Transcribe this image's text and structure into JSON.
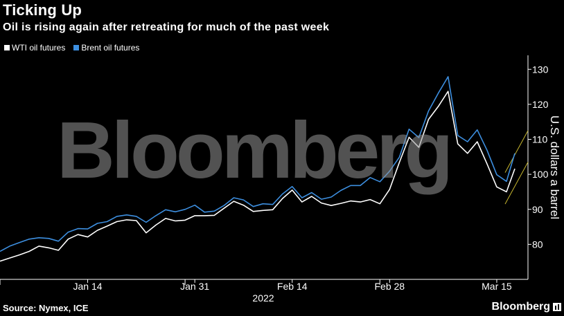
{
  "header": {
    "title": "Ticking Up",
    "subtitle": "Oil is rising again after retreating for much of the past week"
  },
  "footer": {
    "source": "Source: Nymex, ICE",
    "brand": "Bloomberg"
  },
  "watermark": "Bloomberg",
  "colors": {
    "background": "#000000",
    "wti": "#ffffff",
    "brent": "#3d8fe0",
    "channel": "#c8b830",
    "axis": "#ffffff"
  },
  "chart_data": {
    "type": "line",
    "title": "Ticking Up",
    "subtitle": "Oil is rising again after retreating for much of the past week",
    "ylabel": "U.S. dollars a barrel",
    "xlabel": "2022",
    "x_tick_labels": [
      "Jan 14",
      "Jan 31",
      "Feb 14",
      "Feb 28",
      "Mar 15"
    ],
    "y_ticks": [
      80,
      90,
      100,
      110,
      120,
      130
    ],
    "ylim": [
      70,
      134
    ],
    "y_axis_side": "right",
    "grid": false,
    "legend_position": "top-left",
    "x": [
      "Jan 3",
      "Jan 4",
      "Jan 5",
      "Jan 6",
      "Jan 7",
      "Jan 10",
      "Jan 11",
      "Jan 12",
      "Jan 13",
      "Jan 14",
      "Jan 17",
      "Jan 18",
      "Jan 19",
      "Jan 20",
      "Jan 21",
      "Jan 24",
      "Jan 25",
      "Jan 26",
      "Jan 27",
      "Jan 28",
      "Jan 31",
      "Feb 1",
      "Feb 2",
      "Feb 3",
      "Feb 4",
      "Feb 7",
      "Feb 8",
      "Feb 9",
      "Feb 10",
      "Feb 11",
      "Feb 14",
      "Feb 15",
      "Feb 16",
      "Feb 17",
      "Feb 18",
      "Feb 21",
      "Feb 22",
      "Feb 23",
      "Feb 24",
      "Feb 25",
      "Feb 28",
      "Mar 1",
      "Mar 2",
      "Mar 3",
      "Mar 4",
      "Mar 7",
      "Mar 8",
      "Mar 9",
      "Mar 10",
      "Mar 11",
      "Mar 14",
      "Mar 15",
      "Mar 16"
    ],
    "series": [
      {
        "name": "WTI oil futures",
        "color": "#ffffff",
        "values": [
          75.2,
          76.1,
          77.0,
          78.0,
          79.5,
          79.0,
          78.3,
          81.5,
          82.8,
          82.1,
          84.0,
          85.2,
          86.5,
          87.0,
          86.8,
          83.3,
          85.5,
          87.4,
          86.7,
          86.9,
          88.2,
          88.2,
          88.3,
          90.3,
          92.3,
          91.2,
          89.4,
          89.7,
          89.9,
          93.1,
          95.5,
          92.1,
          93.7,
          91.8,
          91.1,
          91.7,
          92.4,
          92.1,
          92.8,
          91.6,
          95.7,
          103.4,
          110.6,
          107.7,
          115.7,
          119.4,
          123.7,
          108.7,
          106.0,
          109.3,
          103.0,
          96.4,
          95.0
        ]
      },
      {
        "name": "Brent oil futures",
        "color": "#3d8fe0",
        "values": [
          78.0,
          79.5,
          80.5,
          81.5,
          81.9,
          81.7,
          80.9,
          83.5,
          84.5,
          84.4,
          86.0,
          86.5,
          88.0,
          88.4,
          88.0,
          86.3,
          88.2,
          89.9,
          89.3,
          90.0,
          91.2,
          89.2,
          89.5,
          91.1,
          93.3,
          92.7,
          90.8,
          91.6,
          91.4,
          94.4,
          96.5,
          93.3,
          94.8,
          92.9,
          93.5,
          95.4,
          96.8,
          96.8,
          99.1,
          97.9,
          100.9,
          104.9,
          112.9,
          110.5,
          118.1,
          123.2,
          127.9,
          111.1,
          109.3,
          112.7,
          106.9,
          99.9,
          98.0
        ]
      }
    ],
    "projection": {
      "label": "",
      "color": "#c8b830",
      "wti_end": 101.6,
      "brent_end": 106.0,
      "channel_high": [
        100.5,
        112.5
      ],
      "channel_low": [
        91.5,
        103.5
      ]
    }
  }
}
